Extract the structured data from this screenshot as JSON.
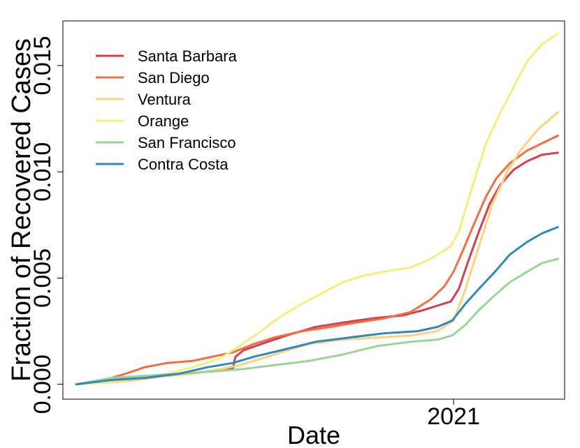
{
  "chart_data": {
    "type": "line",
    "title": "",
    "xlabel": "Date",
    "ylabel": "Fraction of Recovered Cases",
    "x_range": [
      "2020-03-15",
      "2021-03-25"
    ],
    "ylim": [
      -0.0007,
      0.0171
    ],
    "x_ticks": [
      {
        "date": "2021-01-01",
        "label": "2021"
      }
    ],
    "y_ticks": [
      {
        "value": 0.0,
        "label": "0.000"
      },
      {
        "value": 0.005,
        "label": "0.005"
      },
      {
        "value": 0.01,
        "label": "0.010"
      },
      {
        "value": 0.015,
        "label": "0.015"
      }
    ],
    "grid": false,
    "legend_position": "top-left",
    "series": [
      {
        "name": "Santa Barbara",
        "color": "#d53e4f",
        "points": [
          [
            "2020-03-25",
            0.0
          ],
          [
            "2020-04-10",
            0.0001
          ],
          [
            "2020-04-25",
            0.00025
          ],
          [
            "2020-05-15",
            0.0003
          ],
          [
            "2020-06-01",
            0.0004
          ],
          [
            "2020-06-20",
            0.0005
          ],
          [
            "2020-07-10",
            0.0007
          ],
          [
            "2020-07-20",
            0.00075
          ],
          [
            "2020-07-22",
            0.0013
          ],
          [
            "2020-07-28",
            0.0016
          ],
          [
            "2020-08-15",
            0.002
          ],
          [
            "2020-09-01",
            0.00235
          ],
          [
            "2020-09-20",
            0.0027
          ],
          [
            "2020-10-10",
            0.0029
          ],
          [
            "2020-11-01",
            0.0031
          ],
          [
            "2020-11-25",
            0.00325
          ],
          [
            "2020-12-10",
            0.0035
          ],
          [
            "2020-12-20",
            0.0037
          ],
          [
            "2020-12-30",
            0.0039
          ],
          [
            "2021-01-05",
            0.0045
          ],
          [
            "2021-01-12",
            0.0058
          ],
          [
            "2021-01-20",
            0.0072
          ],
          [
            "2021-01-28",
            0.0085
          ],
          [
            "2021-02-05",
            0.0094
          ],
          [
            "2021-02-15",
            0.0101
          ],
          [
            "2021-02-25",
            0.0105
          ],
          [
            "2021-03-08",
            0.0108
          ],
          [
            "2021-03-20",
            0.0109
          ]
        ]
      },
      {
        "name": "San Diego",
        "color": "#f46d43",
        "points": [
          [
            "2020-03-25",
            0.0
          ],
          [
            "2020-04-15",
            0.0002
          ],
          [
            "2020-05-01",
            0.0005
          ],
          [
            "2020-05-15",
            0.0008
          ],
          [
            "2020-06-01",
            0.001
          ],
          [
            "2020-06-20",
            0.0011
          ],
          [
            "2020-07-05",
            0.0013
          ],
          [
            "2020-07-20",
            0.0015
          ],
          [
            "2020-08-05",
            0.0019
          ],
          [
            "2020-08-20",
            0.0022
          ],
          [
            "2020-09-10",
            0.0025
          ],
          [
            "2020-10-01",
            0.0027
          ],
          [
            "2020-10-20",
            0.0029
          ],
          [
            "2020-11-10",
            0.0031
          ],
          [
            "2020-11-30",
            0.0034
          ],
          [
            "2020-12-15",
            0.004
          ],
          [
            "2020-12-25",
            0.0046
          ],
          [
            "2021-01-01",
            0.0053
          ],
          [
            "2021-01-08",
            0.0063
          ],
          [
            "2021-01-16",
            0.0075
          ],
          [
            "2021-01-25",
            0.0088
          ],
          [
            "2021-02-02",
            0.0097
          ],
          [
            "2021-02-12",
            0.0104
          ],
          [
            "2021-02-25",
            0.011
          ],
          [
            "2021-03-10",
            0.0114
          ],
          [
            "2021-03-20",
            0.0117
          ]
        ]
      },
      {
        "name": "Ventura",
        "color": "#fdd27f",
        "points": [
          [
            "2020-03-25",
            0.0
          ],
          [
            "2020-04-20",
            0.0001
          ],
          [
            "2020-05-10",
            0.0002
          ],
          [
            "2020-06-01",
            0.0004
          ],
          [
            "2020-06-20",
            0.0005
          ],
          [
            "2020-07-10",
            0.0007
          ],
          [
            "2020-07-25",
            0.0009
          ],
          [
            "2020-08-10",
            0.0012
          ],
          [
            "2020-08-25",
            0.0015
          ],
          [
            "2020-09-15",
            0.0019
          ],
          [
            "2020-10-10",
            0.0021
          ],
          [
            "2020-11-05",
            0.0022
          ],
          [
            "2020-12-01",
            0.0023
          ],
          [
            "2020-12-20",
            0.0025
          ],
          [
            "2021-01-01",
            0.003
          ],
          [
            "2021-01-10",
            0.0045
          ],
          [
            "2021-01-20",
            0.0065
          ],
          [
            "2021-01-30",
            0.0085
          ],
          [
            "2021-02-10",
            0.01
          ],
          [
            "2021-02-20",
            0.011
          ],
          [
            "2021-03-05",
            0.012
          ],
          [
            "2021-03-20",
            0.0128
          ]
        ]
      },
      {
        "name": "Orange",
        "color": "#f0f07a",
        "points": [
          [
            "2020-03-25",
            0.0
          ],
          [
            "2020-04-15",
            0.0001
          ],
          [
            "2020-05-10",
            0.0003
          ],
          [
            "2020-06-01",
            0.0005
          ],
          [
            "2020-06-20",
            0.0008
          ],
          [
            "2020-07-10",
            0.0012
          ],
          [
            "2020-07-25",
            0.0018
          ],
          [
            "2020-08-10",
            0.0025
          ],
          [
            "2020-08-25",
            0.0032
          ],
          [
            "2020-09-10",
            0.0038
          ],
          [
            "2020-09-25",
            0.0043
          ],
          [
            "2020-10-10",
            0.0048
          ],
          [
            "2020-10-25",
            0.0051
          ],
          [
            "2020-11-10",
            0.0053
          ],
          [
            "2020-11-30",
            0.0055
          ],
          [
            "2020-12-15",
            0.0059
          ],
          [
            "2020-12-30",
            0.0065
          ],
          [
            "2021-01-05",
            0.0072
          ],
          [
            "2021-01-15",
            0.0093
          ],
          [
            "2021-01-25",
            0.0113
          ],
          [
            "2021-02-05",
            0.0128
          ],
          [
            "2021-02-15",
            0.014
          ],
          [
            "2021-02-25",
            0.0152
          ],
          [
            "2021-03-08",
            0.016
          ],
          [
            "2021-03-20",
            0.0165
          ]
        ]
      },
      {
        "name": "San Francisco",
        "color": "#99d594",
        "points": [
          [
            "2020-03-25",
            0.0
          ],
          [
            "2020-04-20",
            0.0003
          ],
          [
            "2020-05-15",
            0.0004
          ],
          [
            "2020-06-10",
            0.0005
          ],
          [
            "2020-07-05",
            0.0006
          ],
          [
            "2020-07-25",
            0.0007
          ],
          [
            "2020-08-20",
            0.0009
          ],
          [
            "2020-09-15",
            0.0011
          ],
          [
            "2020-10-10",
            0.0014
          ],
          [
            "2020-11-05",
            0.0018
          ],
          [
            "2020-11-30",
            0.002
          ],
          [
            "2020-12-20",
            0.0021
          ],
          [
            "2020-12-31",
            0.0023
          ],
          [
            "2021-01-10",
            0.0028
          ],
          [
            "2021-01-20",
            0.0035
          ],
          [
            "2021-02-01",
            0.0042
          ],
          [
            "2021-02-12",
            0.0048
          ],
          [
            "2021-02-25",
            0.0053
          ],
          [
            "2021-03-08",
            0.0057
          ],
          [
            "2021-03-20",
            0.0059
          ]
        ]
      },
      {
        "name": "Contra Costa",
        "color": "#3288bd",
        "points": [
          [
            "2020-03-25",
            0.0
          ],
          [
            "2020-04-20",
            0.0002
          ],
          [
            "2020-05-15",
            0.0003
          ],
          [
            "2020-06-10",
            0.0005
          ],
          [
            "2020-07-01",
            0.0008
          ],
          [
            "2020-07-20",
            0.001
          ],
          [
            "2020-08-05",
            0.0013
          ],
          [
            "2020-08-25",
            0.0016
          ],
          [
            "2020-09-20",
            0.002
          ],
          [
            "2020-10-15",
            0.0022
          ],
          [
            "2020-11-10",
            0.0024
          ],
          [
            "2020-12-05",
            0.0025
          ],
          [
            "2020-12-20",
            0.0027
          ],
          [
            "2020-12-31",
            0.003
          ],
          [
            "2021-01-10",
            0.0038
          ],
          [
            "2021-01-20",
            0.0045
          ],
          [
            "2021-02-01",
            0.0053
          ],
          [
            "2021-02-12",
            0.0061
          ],
          [
            "2021-02-25",
            0.0067
          ],
          [
            "2021-03-08",
            0.0071
          ],
          [
            "2021-03-20",
            0.0074
          ]
        ]
      }
    ]
  }
}
